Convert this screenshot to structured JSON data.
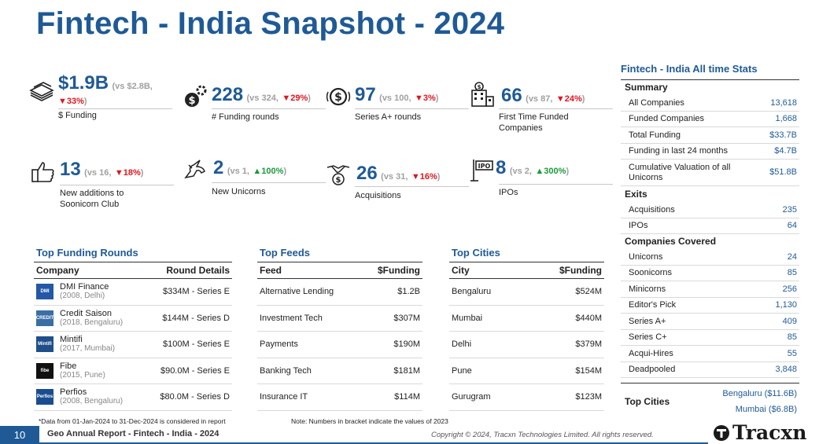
{
  "title": "Fintech - India Snapshot - 2024",
  "kpis": [
    {
      "icon": "money-stack-icon",
      "value": "$1.9B",
      "cmp_pre": "(vs $2.8B,",
      "change": "▼33%",
      "cmp_post": ")",
      "dir": "down",
      "label": "$ Funding"
    },
    {
      "icon": "dollar-gear-icon",
      "value": "228",
      "cmp_pre": "(vs 324,",
      "change": "▼29%",
      "cmp_post": ")",
      "dir": "down",
      "label": "# Funding rounds"
    },
    {
      "icon": "dollar-circle-icon",
      "value": "97",
      "cmp_pre": "(vs 100,",
      "change": "▼3%",
      "cmp_post": ")",
      "dir": "down",
      "label": "Series A+ rounds"
    },
    {
      "icon": "building-dollar-icon",
      "value": "66",
      "cmp_pre": "(vs 87,",
      "change": "▼24%",
      "cmp_post": ")",
      "dir": "down",
      "label": "First Time Funded Companies"
    },
    {
      "icon": "thumbs-up-icon",
      "value": "13",
      "cmp_pre": "(vs 16,",
      "change": "▼18%",
      "cmp_post": ")",
      "dir": "down",
      "label": "New additions to Soonicorn Club"
    },
    {
      "icon": "unicorn-icon",
      "value": "2",
      "cmp_pre": "(vs 1,",
      "change": "▲100%",
      "cmp_post": ")",
      "dir": "up",
      "label": "New Unicorns"
    },
    {
      "icon": "handshake-icon",
      "value": "26",
      "cmp_pre": "(vs 31,",
      "change": "▼16%",
      "cmp_post": ")",
      "dir": "down",
      "label": "Acquisitions"
    },
    {
      "icon": "ipo-sign-icon",
      "value": "8",
      "cmp_pre": "(vs 2,",
      "change": "▲300%",
      "cmp_post": ")",
      "dir": "up",
      "label": "IPOs"
    }
  ],
  "top_funding_rounds": {
    "title": "Top Funding Rounds",
    "headers": [
      "Company",
      "Round Details"
    ],
    "rows": [
      {
        "name": "DMI Finance",
        "sub": "(2008, Delhi)",
        "details": "$334M - Series E",
        "logo_color": "#2458a6",
        "logo_text": "DMI"
      },
      {
        "name": "Credit Saison",
        "sub": "(2018, Bengaluru)",
        "details": "$144M - Series D",
        "logo_color": "#3a6ea5",
        "logo_text": "CREDIT"
      },
      {
        "name": "Mintifi",
        "sub": "(2017, Mumbai)",
        "details": "$100M - Series E",
        "logo_color": "#1f4f8a",
        "logo_text": "Mintifi"
      },
      {
        "name": "Fibe",
        "sub": "(2015, Pune)",
        "details": "$90.0M - Series E",
        "logo_color": "#111111",
        "logo_text": "fibe"
      },
      {
        "name": "Perfios",
        "sub": "(2008, Bengaluru)",
        "details": "$80.0M - Series D",
        "logo_color": "#1a4d8f",
        "logo_text": "Perfios"
      }
    ]
  },
  "top_feeds": {
    "title": "Top Feeds",
    "headers": [
      "Feed",
      "$Funding"
    ],
    "rows": [
      [
        "Alternative Lending",
        "$1.2B"
      ],
      [
        "Investment Tech",
        "$307M"
      ],
      [
        "Payments",
        "$190M"
      ],
      [
        "Banking Tech",
        "$181M"
      ],
      [
        "Insurance IT",
        "$114M"
      ]
    ]
  },
  "top_cities": {
    "title": "Top Cities",
    "headers": [
      "City",
      "$Funding"
    ],
    "rows": [
      [
        "Bengaluru",
        "$524M"
      ],
      [
        "Mumbai",
        "$440M"
      ],
      [
        "Delhi",
        "$379M"
      ],
      [
        "Pune",
        "$154M"
      ],
      [
        "Gurugram",
        "$123M"
      ]
    ]
  },
  "stats": {
    "title": "Fintech - India All time Stats",
    "summary_label": "Summary",
    "summary": [
      [
        "All Companies",
        "13,618"
      ],
      [
        "Funded Companies",
        "1,668"
      ],
      [
        "Total Funding",
        "$33.7B"
      ],
      [
        "Funding in last 24 months",
        "$4.7B"
      ],
      [
        "Cumulative Valuation of all Unicorns",
        "$51.8B"
      ]
    ],
    "exits_label": "Exits",
    "exits": [
      [
        "Acquisitions",
        "235"
      ],
      [
        "IPOs",
        "64"
      ]
    ],
    "covered_label": "Companies Covered",
    "covered": [
      [
        "Unicorns",
        "24"
      ],
      [
        "Soonicorns",
        "85"
      ],
      [
        "Minicorns",
        "256"
      ],
      [
        "Editor's Pick",
        "1,130"
      ],
      [
        "Series A+",
        "409"
      ],
      [
        "Series C+",
        "85"
      ],
      [
        "Acqui-Hires",
        "55"
      ],
      [
        "Deadpooled",
        "3,848"
      ]
    ],
    "top_cities_label": "Top Cities",
    "top_cities": [
      "Bengaluru ($11.6B)",
      "Mumbai ($6.8B)"
    ]
  },
  "notes": {
    "data_range": "*Data from 01-Jan-2024 to 31-Dec-2024 is considered in report",
    "bracket": "Note: Numbers in bracket indicate the values of 2023"
  },
  "footer": {
    "page": "10",
    "title": "Geo Annual Report - Fintech - India - 2024",
    "copyright": "Copyright © 2024, Tracxn Technologies Limited. All rights reserved.",
    "brand": "Tracxn"
  }
}
